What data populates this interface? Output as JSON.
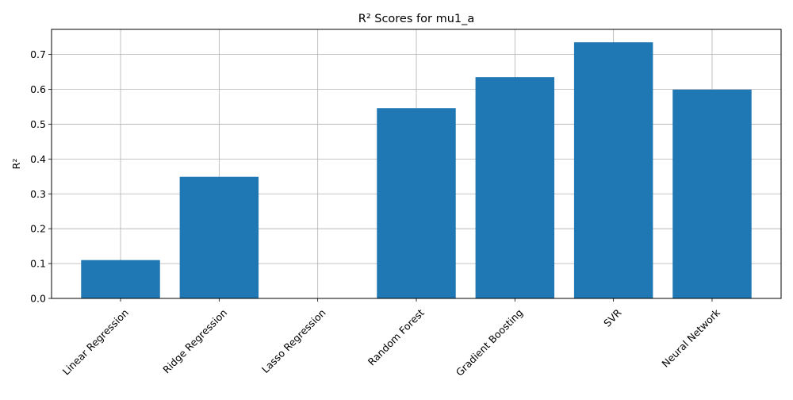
{
  "chart_data": {
    "type": "bar",
    "title": "R² Scores for mu1_a",
    "xlabel": "",
    "ylabel": "R²",
    "categories": [
      "Linear Regression",
      "Ridge Regression",
      "Lasso Regression",
      "Random Forest",
      "Gradient Boosting",
      "SVR",
      "Neural Network"
    ],
    "values": [
      0.11,
      0.349,
      0.0,
      0.546,
      0.635,
      0.735,
      0.599
    ],
    "ylim": [
      0,
      0.772
    ],
    "yticks": [
      "0.0",
      "0.1",
      "0.2",
      "0.3",
      "0.4",
      "0.5",
      "0.6",
      "0.7"
    ],
    "grid": true,
    "bar_color": "#1f77b4",
    "grid_color": "#b0b0b0"
  }
}
